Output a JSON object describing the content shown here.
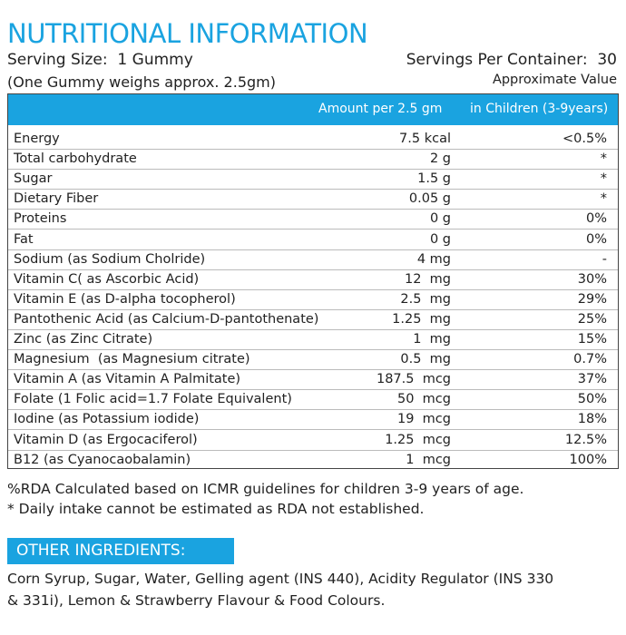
{
  "header": {
    "title": "NUTRITIONAL INFORMATION",
    "serving_size": "Serving Size:  1 Gummy",
    "servings_per_container": "Servings Per Container:  30",
    "weight_note": "(One Gummy weighs approx. 2.5gm)",
    "approx_label": "Approximate Value"
  },
  "table": {
    "columns": [
      "Amount per 2.5 gm",
      "in Children (3-9years)"
    ],
    "rows": [
      [
        "Energy",
        "7.5 kcal",
        "<0.5%"
      ],
      [
        "Total carbohydrate",
        "2 g",
        "*"
      ],
      [
        "Sugar",
        "1.5 g",
        "*"
      ],
      [
        "Dietary Fiber",
        "0.05 g",
        "*"
      ],
      [
        "Proteins",
        "0 g",
        "0%"
      ],
      [
        "Fat",
        "0 g",
        "0%"
      ],
      [
        "Sodium (as Sodium Cholride)",
        "4 mg",
        "-"
      ],
      [
        "Vitamin C( as Ascorbic Acid)",
        "12  mg",
        "30%"
      ],
      [
        "Vitamin E (as D-alpha tocopherol)",
        "2.5  mg",
        "29%"
      ],
      [
        "Pantothenic Acid (as Calcium-D-pantothenate)",
        "1.25  mg",
        "25%"
      ],
      [
        "Zinc (as Zinc Citrate)",
        "1  mg",
        "15%"
      ],
      [
        "Magnesium  (as Magnesium citrate)",
        "0.5  mg",
        "0.7%"
      ],
      [
        "Vitamin A (as Vitamin A Palmitate)",
        "187.5  mcg",
        "37%"
      ],
      [
        "Folate (1 Folic acid=1.7 Folate Equivalent)",
        "50  mcg",
        "50%"
      ],
      [
        "Iodine (as Potassium iodide)",
        "19  mcg",
        "18%"
      ],
      [
        "Vitamin D (as Ergocaciferol)",
        "1.25  mcg",
        "12.5%"
      ],
      [
        "B12 (as Cyanocaobalamin)",
        "1  mcg",
        "100%"
      ]
    ]
  },
  "footnotes": [
    "%RDA Calculated based on ICMR guidelines for children 3-9 years of age.",
    "* Daily intake cannot be estimated as RDA not established."
  ],
  "ingredients": {
    "heading": "OTHER INGREDIENTS:",
    "lines": [
      "Corn Syrup, Sugar, Water, Gelling agent (INS 440), Acidity Regulator (INS 330",
      "& 331i), Lemon & Strawberry Flavour & Food Colours."
    ]
  }
}
